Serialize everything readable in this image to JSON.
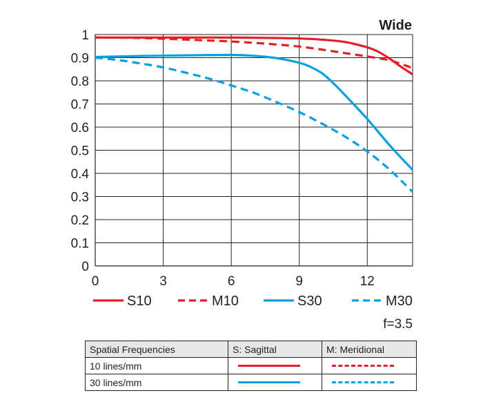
{
  "chart_data": {
    "type": "line",
    "title": "Wide",
    "aperture": "f=3.5",
    "xlim": [
      0,
      14
    ],
    "ylim": [
      0,
      1
    ],
    "x_ticks": [
      "0",
      "3",
      "6",
      "9",
      "12"
    ],
    "y_ticks": [
      "0",
      "0.1",
      "0.2",
      "0.3",
      "0.4",
      "0.5",
      "0.6",
      "0.7",
      "0.8",
      "0.9",
      "1"
    ],
    "grid": true,
    "legend_position": "bottom",
    "series": [
      {
        "name": "S10",
        "color": "#e31e24",
        "dash": "solid",
        "points": [
          [
            0,
            0.987
          ],
          [
            2,
            0.987
          ],
          [
            4,
            0.987
          ],
          [
            6,
            0.987
          ],
          [
            8,
            0.985
          ],
          [
            9,
            0.983
          ],
          [
            10,
            0.978
          ],
          [
            11,
            0.968
          ],
          [
            12,
            0.945
          ],
          [
            12.5,
            0.925
          ],
          [
            13,
            0.895
          ],
          [
            13.5,
            0.86
          ],
          [
            14,
            0.828
          ]
        ]
      },
      {
        "name": "M10",
        "color": "#e31e24",
        "dash": "dashed",
        "points": [
          [
            0,
            0.987
          ],
          [
            2,
            0.985
          ],
          [
            4,
            0.978
          ],
          [
            6,
            0.97
          ],
          [
            8,
            0.957
          ],
          [
            9,
            0.948
          ],
          [
            10,
            0.935
          ],
          [
            11,
            0.92
          ],
          [
            12,
            0.905
          ],
          [
            13,
            0.888
          ],
          [
            14,
            0.855
          ]
        ]
      },
      {
        "name": "S30",
        "color": "#00a0e3",
        "dash": "solid",
        "points": [
          [
            0,
            0.903
          ],
          [
            2,
            0.907
          ],
          [
            4,
            0.91
          ],
          [
            6,
            0.912
          ],
          [
            7,
            0.908
          ],
          [
            8,
            0.898
          ],
          [
            9,
            0.878
          ],
          [
            9.5,
            0.86
          ],
          [
            10,
            0.833
          ],
          [
            10.5,
            0.79
          ],
          [
            11,
            0.74
          ],
          [
            12,
            0.635
          ],
          [
            13,
            0.52
          ],
          [
            14,
            0.415
          ]
        ]
      },
      {
        "name": "M30",
        "color": "#00a0e3",
        "dash": "dashed",
        "points": [
          [
            0,
            0.9
          ],
          [
            1,
            0.89
          ],
          [
            2,
            0.875
          ],
          [
            3,
            0.858
          ],
          [
            4,
            0.835
          ],
          [
            5,
            0.81
          ],
          [
            6,
            0.78
          ],
          [
            7,
            0.748
          ],
          [
            8,
            0.708
          ],
          [
            9,
            0.665
          ],
          [
            10,
            0.615
          ],
          [
            11,
            0.56
          ],
          [
            12,
            0.495
          ],
          [
            13,
            0.415
          ],
          [
            14,
            0.32
          ]
        ]
      }
    ]
  },
  "key_table": {
    "headers": [
      "Spatial Frequencies",
      "S: Sagittal",
      "M: Meridional"
    ],
    "rows": [
      {
        "label": "10 lines/mm",
        "sagittal_color": "#e31e24",
        "meridional_color": "#e31e24"
      },
      {
        "label": "30 lines/mm",
        "sagittal_color": "#00a0e3",
        "meridional_color": "#00a0e3"
      }
    ]
  }
}
